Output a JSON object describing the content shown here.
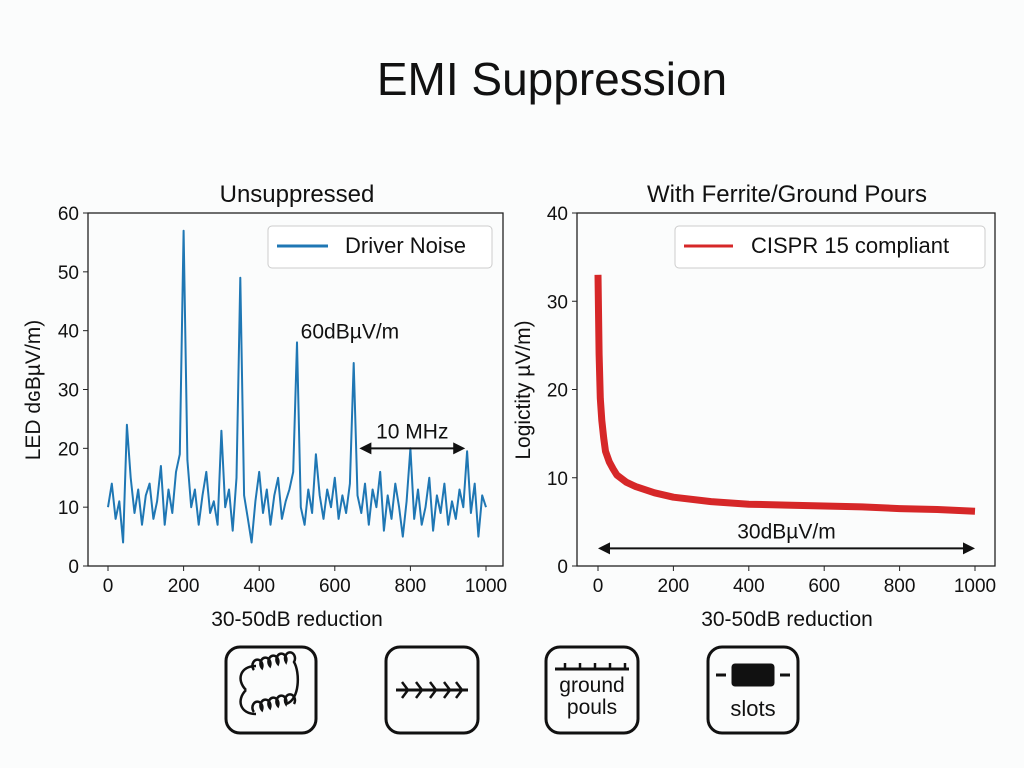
{
  "title": "EMI Suppression",
  "chart_data": [
    {
      "type": "line",
      "title": "Unsuppressed",
      "xlabel": "30-50dB reduction",
      "ylabel": "LED dɢBµV/m)",
      "xlim": [
        0,
        1000
      ],
      "ylim": [
        0,
        60
      ],
      "xticks": [
        "0",
        "200",
        "400",
        "600",
        "800",
        "1000"
      ],
      "yticks": [
        "0",
        "10",
        "20",
        "30",
        "40",
        "50",
        "60"
      ],
      "grid": false,
      "legend_position": "top-right",
      "color": "#1f77b4",
      "series": [
        {
          "name": "Driver Noise",
          "x": [
            0,
            10,
            20,
            30,
            40,
            50,
            60,
            70,
            80,
            90,
            100,
            110,
            120,
            130,
            140,
            150,
            160,
            170,
            180,
            190,
            200,
            210,
            220,
            230,
            240,
            250,
            260,
            270,
            280,
            290,
            300,
            310,
            320,
            330,
            340,
            350,
            360,
            370,
            380,
            390,
            400,
            410,
            420,
            430,
            440,
            450,
            460,
            470,
            480,
            490,
            500,
            510,
            520,
            530,
            540,
            550,
            560,
            570,
            580,
            590,
            600,
            610,
            620,
            630,
            640,
            650,
            660,
            670,
            680,
            690,
            700,
            710,
            720,
            730,
            740,
            750,
            760,
            770,
            780,
            790,
            800,
            810,
            820,
            830,
            840,
            850,
            860,
            870,
            880,
            890,
            900,
            910,
            920,
            930,
            940,
            950,
            960,
            970,
            980,
            990,
            1000
          ],
          "y": [
            10,
            14,
            8,
            11,
            4,
            24,
            15,
            9,
            13,
            7,
            12,
            14,
            8,
            11,
            17,
            7,
            13,
            9,
            16,
            19,
            57,
            18,
            10,
            13,
            7,
            12,
            16,
            9,
            11,
            7,
            23,
            10,
            13,
            6,
            15,
            49,
            12,
            8,
            4,
            11,
            16,
            9,
            13,
            7,
            12,
            15,
            8,
            11,
            13,
            16,
            38,
            10,
            7,
            13,
            9,
            19,
            12,
            8,
            13,
            10,
            15,
            8,
            12,
            9,
            14,
            34.5,
            12,
            9,
            14,
            7,
            13,
            10,
            16,
            6,
            12,
            8,
            14,
            10,
            5,
            11,
            20,
            8,
            13,
            7,
            10,
            15,
            6,
            12,
            9,
            14,
            7,
            11,
            8,
            13,
            10,
            19.5,
            9,
            14,
            5,
            12,
            10
          ]
        }
      ],
      "annotations": [
        {
          "text": "60dBµV/m",
          "x": 640,
          "y": 40
        },
        {
          "text": "10 MHz",
          "x": 805,
          "y": 23,
          "arrow": {
            "from": 665,
            "to": 945,
            "y": 20
          }
        }
      ]
    },
    {
      "type": "line",
      "title": "With Ferrite/Ground Pours",
      "xlabel": "30-50dB reduction",
      "ylabel": "Logictity µV/m)",
      "xlim": [
        0,
        1000
      ],
      "ylim": [
        0,
        40
      ],
      "xticks": [
        "0",
        "200",
        "400",
        "600",
        "800",
        "1000"
      ],
      "yticks": [
        "0",
        "10",
        "20",
        "30",
        "40"
      ],
      "grid": false,
      "legend_position": "top-right",
      "color": "#d62728",
      "series": [
        {
          "name": "CISPR 15 compliant",
          "x": [
            0,
            3,
            6,
            10,
            15,
            20,
            30,
            40,
            50,
            75,
            100,
            150,
            200,
            300,
            400,
            500,
            600,
            700,
            800,
            900,
            1000
          ],
          "y": [
            33,
            24,
            19,
            16.5,
            14.5,
            13,
            11.8,
            11,
            10.3,
            9.5,
            9,
            8.3,
            7.8,
            7.3,
            7,
            6.9,
            6.8,
            6.7,
            6.5,
            6.4,
            6.2
          ]
        }
      ],
      "annotations": [
        {
          "text": "30dBµV/m",
          "x": 500,
          "y": 4,
          "arrow": {
            "from": 0,
            "to": 1000,
            "y": 2
          }
        }
      ]
    }
  ],
  "icons": [
    {
      "name": "ferrite-coil-icon",
      "label": ""
    },
    {
      "name": "filtered-trace-icon",
      "label": ""
    },
    {
      "name": "ground-pour-icon",
      "label": "ground pouls"
    },
    {
      "name": "slots-icon",
      "label": "slots"
    }
  ]
}
